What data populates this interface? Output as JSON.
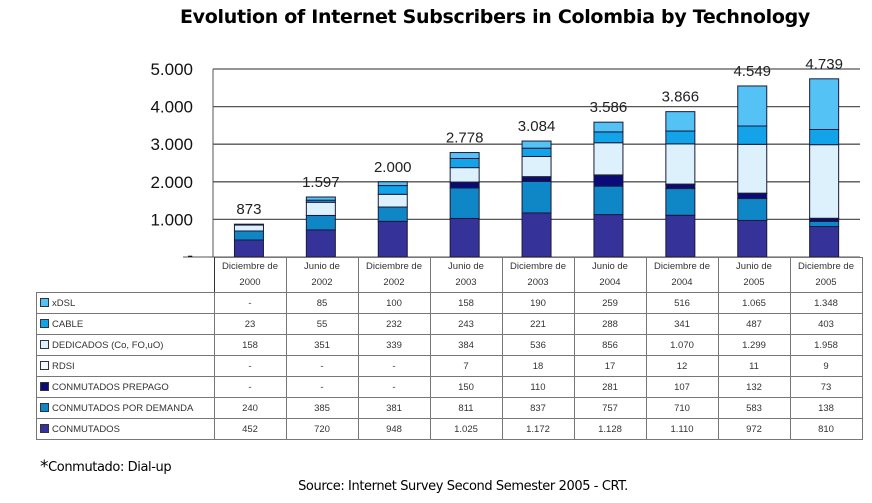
{
  "chart_data": {
    "type": "bar",
    "stacked": true,
    "title": "Evolution of Internet Subscribers in Colombia by Technology",
    "xlabel": "",
    "ylabel": "",
    "ylim": [
      0,
      5000
    ],
    "yticks": [
      0,
      1000,
      2000,
      3000,
      4000,
      5000
    ],
    "ytick_labels": [
      "-",
      "1.000",
      "2.000",
      "3.000",
      "4.000",
      "5.000"
    ],
    "grid": true,
    "legend": "table-left",
    "categories": [
      [
        "Diciembre de",
        "2000"
      ],
      [
        "Junio de",
        "2002"
      ],
      [
        "Diciembre de",
        "2002"
      ],
      [
        "Junio de",
        "2003"
      ],
      [
        "Diciembre de",
        "2003"
      ],
      [
        "Junio de",
        "2004"
      ],
      [
        "Diciembre de",
        "2004"
      ],
      [
        "Junio de",
        "2005"
      ],
      [
        "Diciembre de",
        "2005"
      ]
    ],
    "totals": [
      873,
      1597,
      2000,
      2778,
      3084,
      3586,
      3866,
      4549,
      4739
    ],
    "total_labels": [
      "873",
      "1.597",
      "2.000",
      "2.778",
      "3.084",
      "3.586",
      "3.866",
      "4.549",
      "4.739"
    ],
    "series": [
      {
        "name": "xDSL",
        "color": "#55c2f5",
        "values": [
          0,
          85,
          100,
          158,
          190,
          259,
          516,
          1065,
          1348
        ],
        "labels": [
          "-",
          "85",
          "100",
          "158",
          "190",
          "259",
          "516",
          "1.065",
          "1.348"
        ]
      },
      {
        "name": "CABLE",
        "color": "#13a3e8",
        "values": [
          23,
          55,
          232,
          243,
          221,
          288,
          341,
          487,
          403
        ],
        "labels": [
          "23",
          "55",
          "232",
          "243",
          "221",
          "288",
          "341",
          "487",
          "403"
        ]
      },
      {
        "name": "DEDICADOS (Co, FO,uO)",
        "color": "#ddf1fc",
        "values": [
          158,
          351,
          339,
          384,
          536,
          856,
          1070,
          1299,
          1958
        ],
        "labels": [
          "158",
          "351",
          "339",
          "384",
          "536",
          "856",
          "1.070",
          "1.299",
          "1.958"
        ]
      },
      {
        "name": "RDSI",
        "color": "#f4fbff",
        "values": [
          0,
          0,
          0,
          7,
          18,
          17,
          12,
          11,
          9
        ],
        "labels": [
          "-",
          "-",
          "-",
          "7",
          "18",
          "17",
          "12",
          "11",
          "9"
        ]
      },
      {
        "name": "CONMUTADOS PREPAGO",
        "color": "#0a0a78",
        "values": [
          0,
          0,
          0,
          150,
          110,
          281,
          107,
          132,
          73
        ],
        "labels": [
          "-",
          "-",
          "-",
          "150",
          "110",
          "281",
          "107",
          "132",
          "73"
        ]
      },
      {
        "name": "CONMUTADOS POR DEMANDA",
        "color": "#0f86c6",
        "values": [
          240,
          385,
          381,
          811,
          837,
          757,
          710,
          583,
          138
        ],
        "labels": [
          "240",
          "385",
          "381",
          "811",
          "837",
          "757",
          "710",
          "583",
          "138"
        ]
      },
      {
        "name": "CONMUTADOS",
        "color": "#35339a",
        "values": [
          452,
          720,
          948,
          1025,
          1172,
          1128,
          1110,
          972,
          810
        ],
        "labels": [
          "452",
          "720",
          "948",
          "1.025",
          "1.172",
          "1.128",
          "1.110",
          "972",
          "810"
        ]
      }
    ]
  },
  "footnote": {
    "star": "*",
    "text": "Conmutado: Dial-up"
  },
  "source": "Source: Internet Survey Second Semester 2005 - CRT.",
  "colors": {
    "gridline": "#555555",
    "bar_outline": "#1a1a3a"
  }
}
